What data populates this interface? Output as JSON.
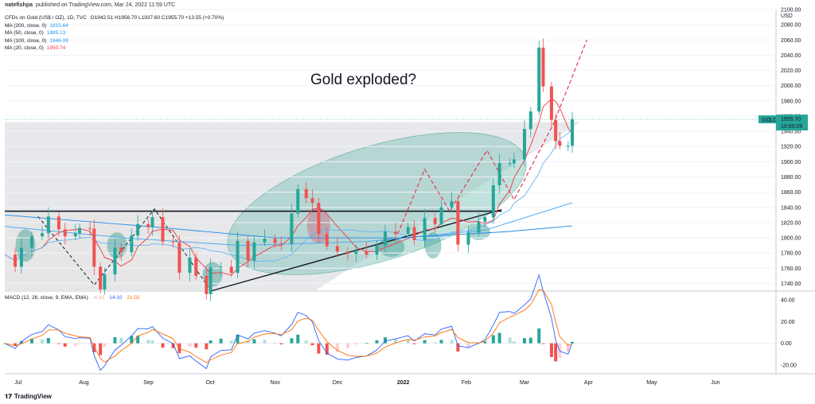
{
  "header": {
    "author": "natefishpa",
    "published_text": "published on TradingView.com, Mar 24, 2022 11:59 UTC"
  },
  "legend": {
    "title": "CFDs on Gold (US$ / OZ), 1D, TVC",
    "ohlc": "O1942.51 H1956.70 L1937.60 C1955.70 +13.55 (+0.70%)",
    "mas": [
      {
        "label": "MA (200, close, 0)",
        "value": "1815.64",
        "color": "#2196f3"
      },
      {
        "label": "MA (50, close, 0)",
        "value": "1885.13",
        "color": "#2196f3"
      },
      {
        "label": "MA (100, close, 0)",
        "value": "1846.09",
        "color": "#2196f3"
      },
      {
        "label": "MA (20, close, 0)",
        "value": "1950.74",
        "color": "#f23645"
      }
    ]
  },
  "macd_legend": {
    "label": "MACD (12, 26, close, 9, EMA, EMA)",
    "hist": "-6.91",
    "macd": "14.10",
    "signal": "21.02"
  },
  "annotation": "Gold exploded?",
  "currency": "USD",
  "price_tag": {
    "label": "GOLD",
    "price": "1955.70",
    "countdown": "10:00:09"
  },
  "footer": {
    "brand": "TradingView",
    "logo": "tv-logo-icon"
  },
  "chart_data": {
    "type": "candlestick",
    "price_axis": {
      "ylim": [
        1730,
        2100
      ],
      "ticks": [
        1740,
        1760,
        1780,
        1800,
        1820,
        1840,
        1860,
        1880,
        1900,
        1920,
        1940,
        1960,
        1980,
        2000,
        2020,
        2040,
        2060,
        2080,
        2100
      ]
    },
    "macd_axis": {
      "ylim": [
        -28,
        48
      ],
      "ticks": [
        "40.00",
        "20.00",
        "0.00",
        "-20.00"
      ]
    },
    "x_labels": [
      "Jul",
      "Aug",
      "Sep",
      "Oct",
      "Nov",
      "Dec",
      "2022",
      "Feb",
      "Mar",
      "Apr",
      "May",
      "Jun"
    ],
    "x_range": [
      "2021-06-24",
      "2022-06-30"
    ],
    "label_dates": [
      "2021-07-01",
      "2021-08-01",
      "2021-09-01",
      "2021-10-01",
      "2021-11-01",
      "2021-12-01",
      "2022-01-01",
      "2022-02-01",
      "2022-03-01",
      "2022-04-01",
      "2022-05-01",
      "2022-06-01"
    ],
    "close_series": [
      [
        "2021-06-24",
        1778
      ],
      [
        "2021-06-29",
        1762
      ],
      [
        "2021-07-02",
        1787
      ],
      [
        "2021-07-07",
        1802
      ],
      [
        "2021-07-12",
        1806
      ],
      [
        "2021-07-15",
        1828
      ],
      [
        "2021-07-20",
        1811
      ],
      [
        "2021-07-23",
        1802
      ],
      [
        "2021-07-28",
        1806
      ],
      [
        "2021-07-30",
        1813
      ],
      [
        "2021-08-04",
        1812
      ],
      [
        "2021-08-06",
        1762
      ],
      [
        "2021-08-09",
        1732
      ],
      [
        "2021-08-11",
        1752
      ],
      [
        "2021-08-16",
        1787
      ],
      [
        "2021-08-19",
        1781
      ],
      [
        "2021-08-24",
        1803
      ],
      [
        "2021-08-27",
        1818
      ],
      [
        "2021-09-01",
        1814
      ],
      [
        "2021-09-03",
        1827
      ],
      [
        "2021-09-08",
        1795
      ],
      [
        "2021-09-13",
        1794
      ],
      [
        "2021-09-16",
        1754
      ],
      [
        "2021-09-21",
        1774
      ],
      [
        "2021-09-24",
        1750
      ],
      [
        "2021-09-29",
        1726
      ],
      [
        "2021-10-01",
        1761
      ],
      [
        "2021-10-06",
        1762
      ],
      [
        "2021-10-11",
        1754
      ],
      [
        "2021-10-14",
        1796
      ],
      [
        "2021-10-19",
        1770
      ],
      [
        "2021-10-22",
        1794
      ],
      [
        "2021-10-27",
        1799
      ],
      [
        "2021-11-01",
        1793
      ],
      [
        "2021-11-04",
        1792
      ],
      [
        "2021-11-09",
        1832
      ],
      [
        "2021-11-12",
        1864
      ],
      [
        "2021-11-16",
        1852
      ],
      [
        "2021-11-19",
        1846
      ],
      [
        "2021-11-22",
        1805
      ],
      [
        "2021-11-26",
        1789
      ],
      [
        "2021-12-01",
        1782
      ],
      [
        "2021-12-06",
        1779
      ],
      [
        "2021-12-10",
        1782
      ],
      [
        "2021-12-15",
        1778
      ],
      [
        "2021-12-20",
        1790
      ],
      [
        "2021-12-24",
        1808
      ],
      [
        "2021-12-29",
        1805
      ],
      [
        "2022-01-04",
        1814
      ],
      [
        "2022-01-07",
        1797
      ],
      [
        "2022-01-12",
        1826
      ],
      [
        "2022-01-17",
        1818
      ],
      [
        "2022-01-20",
        1840
      ],
      [
        "2022-01-25",
        1848
      ],
      [
        "2022-01-28",
        1791
      ],
      [
        "2022-02-02",
        1807
      ],
      [
        "2022-02-07",
        1821
      ],
      [
        "2022-02-10",
        1827
      ],
      [
        "2022-02-14",
        1869
      ],
      [
        "2022-02-17",
        1898
      ],
      [
        "2022-02-22",
        1898
      ],
      [
        "2022-02-24",
        1903
      ],
      [
        "2022-03-01",
        1943
      ],
      [
        "2022-03-04",
        1966
      ],
      [
        "2022-03-08",
        2050
      ],
      [
        "2022-03-10",
        1999
      ],
      [
        "2022-03-14",
        1955
      ],
      [
        "2022-03-16",
        1927
      ],
      [
        "2022-03-18",
        1921
      ],
      [
        "2022-03-22",
        1921
      ],
      [
        "2022-03-24",
        1956
      ]
    ],
    "ma_last": {
      "ma200": 1815.64,
      "ma100": 1846.09,
      "ma50": 1885.13,
      "ma20": 1950.74
    },
    "annotation_lines": {
      "resistance_level": 1835,
      "grey_zone": [
        1730,
        1952
      ],
      "support_from": [
        "2021-10-01",
        1730
      ],
      "support_to": [
        "2022-02-18",
        1837
      ]
    }
  }
}
